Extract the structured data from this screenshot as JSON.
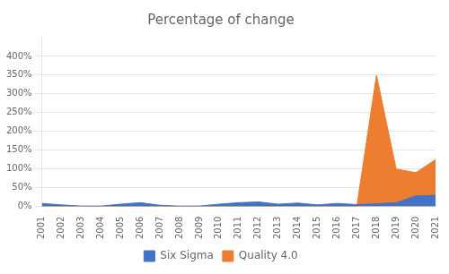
{
  "chart_data": {
    "type": "area",
    "title": "Percentage of change",
    "x": [
      2001,
      2002,
      2003,
      2004,
      2005,
      2006,
      2007,
      2008,
      2009,
      2010,
      2011,
      2012,
      2013,
      2014,
      2015,
      2016,
      2017,
      2018,
      2019,
      2020,
      2021
    ],
    "series": [
      {
        "name": "Six Sigma",
        "color": "#4472c4",
        "values": [
          0.08,
          0.04,
          0.01,
          0.01,
          0.06,
          0.1,
          0.03,
          0.01,
          0.01,
          0.06,
          0.1,
          0.12,
          0.06,
          0.09,
          0.04,
          0.08,
          0.05,
          0.07,
          0.1,
          0.28,
          0.3
        ]
      },
      {
        "name": "Quality 4.0",
        "color": "#ed7d31",
        "values": [
          0.0,
          0.0,
          0.0,
          0.0,
          0.0,
          0.0,
          0.0,
          0.0,
          0.0,
          0.0,
          0.0,
          0.0,
          0.0,
          0.0,
          0.0,
          0.0,
          0.0,
          3.5,
          1.0,
          0.9,
          1.25
        ]
      }
    ],
    "xlim": [
      2001,
      2021
    ],
    "xticks": [
      2001,
      2002,
      2003,
      2004,
      2005,
      2006,
      2007,
      2008,
      2009,
      2010,
      2011,
      2012,
      2013,
      2014,
      2015,
      2016,
      2017,
      2018,
      2019,
      2020,
      2021
    ],
    "ylim": [
      0,
      4.5
    ],
    "yticks": [
      {
        "value": 0.0,
        "label": "0%"
      },
      {
        "value": 0.5,
        "label": "50%"
      },
      {
        "value": 1.0,
        "label": "100%"
      },
      {
        "value": 1.5,
        "label": "150%"
      },
      {
        "value": 2.0,
        "label": "200%"
      },
      {
        "value": 2.5,
        "label": "250%"
      },
      {
        "value": 3.0,
        "label": "300%"
      },
      {
        "value": 3.5,
        "label": "350%"
      },
      {
        "value": 4.0,
        "label": "400%"
      }
    ],
    "grid": true,
    "legend": "bottom"
  }
}
